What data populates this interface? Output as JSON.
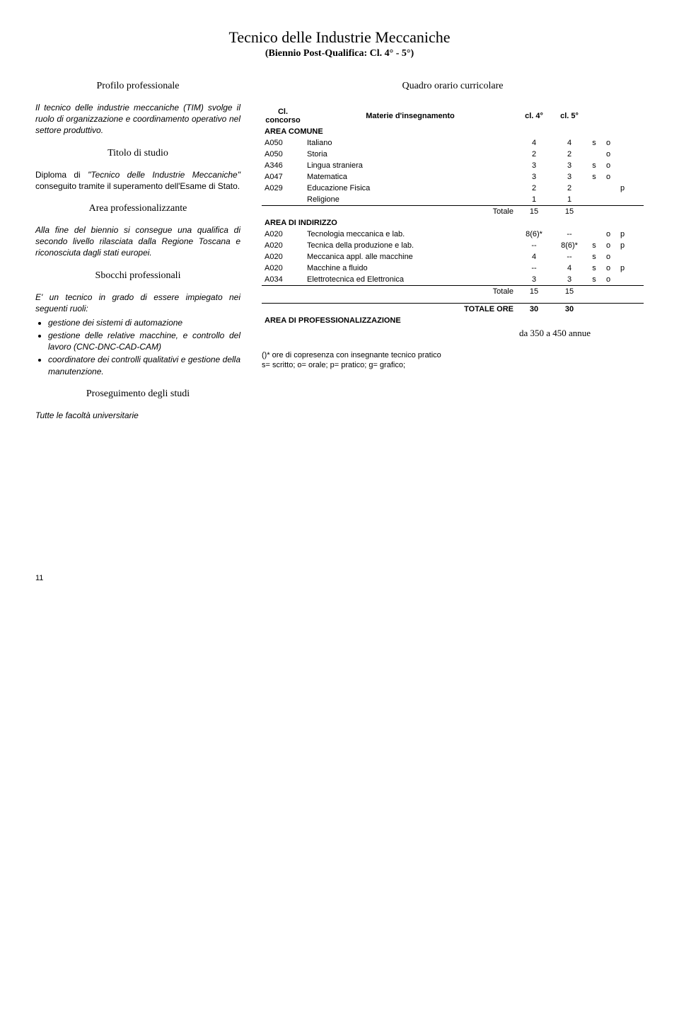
{
  "title": "Tecnico delle Industrie Meccaniche",
  "subtitle": "(Biennio Post-Qualifica: Cl.  4° - 5°)",
  "left": {
    "h_profilo": "Profilo professionale",
    "p_profilo": "Il tecnico delle industrie meccaniche (TIM) svolge il ruolo di organizzazione e coordinamento operativo nel settore produttivo.",
    "h_titolo": "Titolo di studio",
    "p_titolo_pre": "Diploma di ",
    "p_titolo_quote": "\"Tecnico delle Industrie Meccaniche\"",
    "p_titolo_post": " conseguito tramite il superamento dell'Esame di Stato.",
    "h_area": "Area professionalizzante",
    "p_area": "Alla fine del biennio si consegue una qualifica di secondo livello rilasciata dalla Regione Toscana e riconosciuta dagli stati europei.",
    "h_sbocchi": "Sbocchi professionali",
    "p_sbocchi": "E' un tecnico in grado di essere impiegato nei seguenti ruoli:",
    "bullets": [
      "gestione dei sistemi di automazione",
      "gestione delle relative macchine, e controllo del lavoro (CNC-DNC-CAD-CAM)",
      "coordinatore dei controlli qualitativi e gestione della manutenzione."
    ],
    "h_proseg": "Proseguimento degli studi",
    "p_proseg": "Tutte le facoltà universitarie"
  },
  "right": {
    "heading": "Quadro orario curricolare",
    "col_cl": "Cl. concorso",
    "col_mat": "Materie d'insegnamento",
    "col_c4": "cl. 4°",
    "col_c5": "cl. 5°",
    "area_comune": "AREA COMUNE",
    "rows_comune": [
      {
        "c": "A050",
        "m": "Italiano",
        "a": "4",
        "b": "4",
        "f": [
          "s",
          "o",
          "",
          ""
        ]
      },
      {
        "c": "A050",
        "m": "Storia",
        "a": "2",
        "b": "2",
        "f": [
          "",
          "o",
          "",
          ""
        ]
      },
      {
        "c": "A346",
        "m": "Lingua straniera",
        "a": "3",
        "b": "3",
        "f": [
          "s",
          "o",
          "",
          ""
        ]
      },
      {
        "c": "A047",
        "m": "Matematica",
        "a": "3",
        "b": "3",
        "f": [
          "s",
          "o",
          "",
          ""
        ]
      },
      {
        "c": "A029",
        "m": "Educazione Fisica",
        "a": "2",
        "b": "2",
        "f": [
          "",
          "",
          "p",
          ""
        ]
      },
      {
        "c": "",
        "m": "Religione",
        "a": "1",
        "b": "1",
        "f": [
          "",
          "",
          "",
          ""
        ]
      }
    ],
    "totale_label": "Totale",
    "totale_comune_a": "15",
    "totale_comune_b": "15",
    "area_indirizzo": "AREA DI INDIRIZZO",
    "rows_indirizzo": [
      {
        "c": "A020",
        "m": "Tecnologia meccanica e lab.",
        "a": "8(6)*",
        "b": "--",
        "f": [
          "",
          "o",
          "p",
          ""
        ]
      },
      {
        "c": "A020",
        "m": "Tecnica della produzione e lab.",
        "a": "--",
        "b": "8(6)*",
        "f": [
          "s",
          "o",
          "p",
          ""
        ]
      },
      {
        "c": "A020",
        "m": "Meccanica appl. alle macchine",
        "a": "4",
        "b": "--",
        "f": [
          "s",
          "o",
          "",
          ""
        ]
      },
      {
        "c": "A020",
        "m": "Macchine a fluido",
        "a": "--",
        "b": "4",
        "f": [
          "s",
          "o",
          "p",
          ""
        ]
      },
      {
        "c": "A034",
        "m": "Elettrotecnica ed Elettronica",
        "a": "3",
        "b": "3",
        "f": [
          "s",
          "o",
          "",
          ""
        ]
      }
    ],
    "totale_ind_a": "15",
    "totale_ind_b": "15",
    "totale_ore": "TOTALE ORE",
    "totale_ore_a": "30",
    "totale_ore_b": "30",
    "area_prof": "AREA DI PROFESSIONALIZZAZIONE",
    "prof_text": "da 350 a 450 annue",
    "footnote1": "()* ore di copresenza con insegnante tecnico pratico",
    "footnote2": "s= scritto; o= orale; p= pratico; g= grafico;"
  },
  "page_num": "11"
}
